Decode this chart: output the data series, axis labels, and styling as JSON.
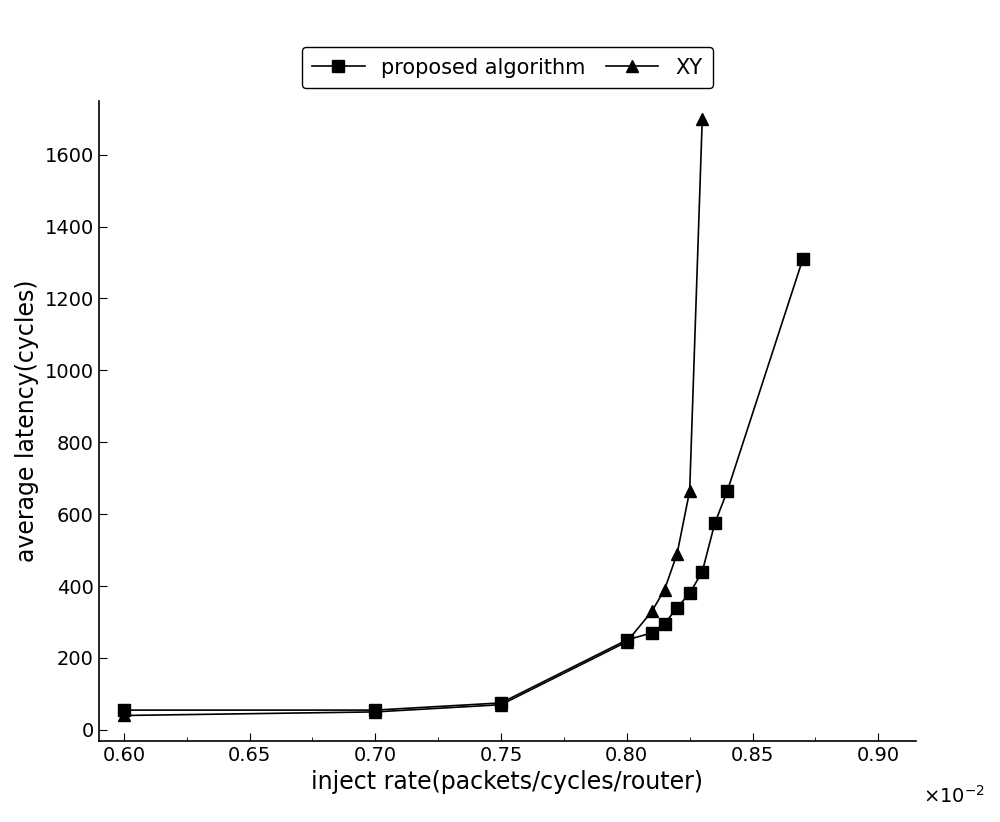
{
  "proposed_x": [
    0.6,
    0.7,
    0.75,
    0.8,
    0.81,
    0.815,
    0.82,
    0.825,
    0.83,
    0.835,
    0.84,
    0.87
  ],
  "proposed_y": [
    55,
    55,
    75,
    250,
    270,
    295,
    340,
    380,
    440,
    575,
    665,
    1310
  ],
  "xy_x": [
    0.6,
    0.7,
    0.75,
    0.8,
    0.81,
    0.815,
    0.82,
    0.825,
    0.83
  ],
  "xy_y": [
    40,
    50,
    70,
    245,
    330,
    390,
    490,
    665,
    1700
  ],
  "xlabel": "inject rate(packets/cycles/router)",
  "ylabel": "average latency(cycles)",
  "legend_proposed": "proposed algorithm",
  "legend_xy": "XY",
  "xlim": [
    0.59,
    0.915
  ],
  "ylim": [
    -30,
    1750
  ],
  "yticks": [
    0,
    200,
    400,
    600,
    800,
    1000,
    1200,
    1400,
    1600
  ],
  "xticks": [
    0.6,
    0.65,
    0.7,
    0.75,
    0.8,
    0.85,
    0.9
  ],
  "color": "#000000",
  "linewidth": 1.2,
  "markersize": 9,
  "xlabel_fontsize": 17,
  "ylabel_fontsize": 17,
  "tick_labelsize": 14,
  "legend_fontsize": 15
}
